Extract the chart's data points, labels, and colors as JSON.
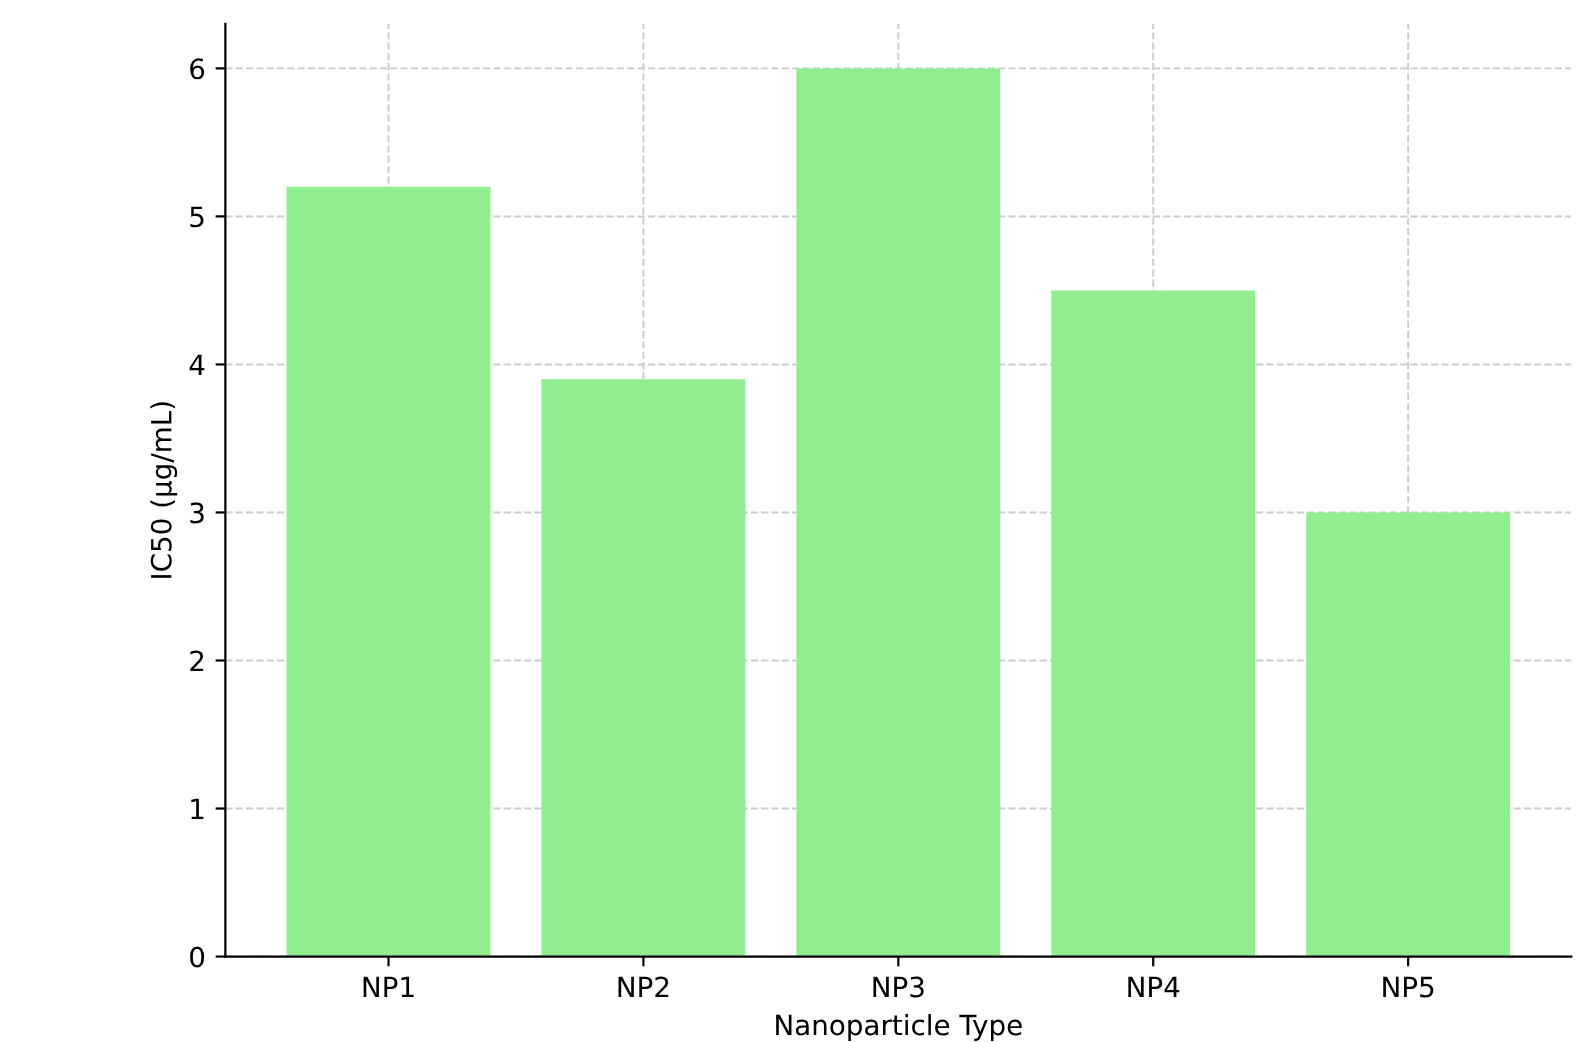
{
  "chart_data": {
    "type": "bar",
    "xlabel": "Nanoparticle Type",
    "ylabel": "IC50 (µg/mL)",
    "categories": [
      "NP1",
      "NP2",
      "NP3",
      "NP4",
      "NP5"
    ],
    "values": [
      5.2,
      3.9,
      6.0,
      4.5,
      3.0
    ],
    "color": "#90ee90",
    "ylim": [
      0,
      6.3
    ],
    "yticks": [
      0,
      1,
      2,
      3,
      4,
      5,
      6
    ],
    "grid": true
  }
}
